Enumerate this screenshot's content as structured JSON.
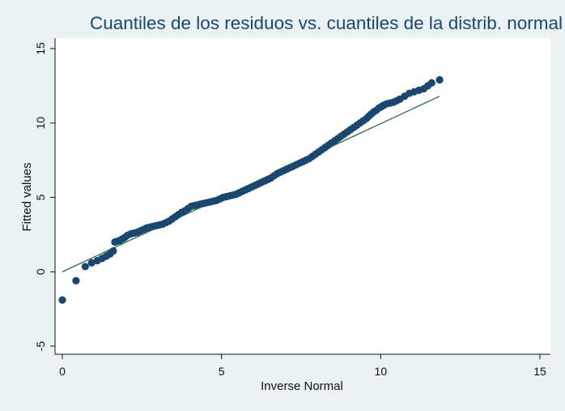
{
  "chart_data": {
    "type": "scatter",
    "title": "Cuantiles de los residuos vs. cuantiles de la distrib. normal",
    "xlabel": "Inverse Normal",
    "ylabel": "Fitted values",
    "xlim": [
      0,
      15
    ],
    "ylim": [
      -5,
      15
    ],
    "xticks": [
      "0",
      "5",
      "10",
      "15"
    ],
    "yticks": [
      "-5",
      "0",
      "5",
      "10",
      "15"
    ],
    "grid": false,
    "legend": "none",
    "colors": {
      "background": "#eaf2f3",
      "plot_area": "#ffffff",
      "points": "#1a476f",
      "reference_line": "#2d6a4f",
      "title": "#1a476f"
    },
    "series": [
      {
        "type": "scatter",
        "x": [
          0.0,
          0.43,
          0.72,
          0.92,
          1.1,
          1.25,
          1.38,
          1.5,
          1.6,
          1.65,
          1.72,
          1.8,
          1.88,
          1.96,
          2.05,
          2.15,
          2.25,
          2.35,
          2.45,
          2.55,
          2.65,
          2.75,
          2.85,
          2.95,
          3.05,
          3.15,
          3.25,
          3.35,
          3.45,
          3.55,
          3.65,
          3.75,
          3.85,
          3.95,
          4.05,
          4.15,
          4.25,
          4.35,
          4.45,
          4.55,
          4.65,
          4.75,
          4.85,
          4.95,
          5.05,
          5.15,
          5.25,
          5.35,
          5.45,
          5.55,
          5.65,
          5.75,
          5.85,
          5.95,
          6.05,
          6.15,
          6.25,
          6.35,
          6.45,
          6.55,
          6.65,
          6.75,
          6.85,
          6.95,
          7.05,
          7.15,
          7.25,
          7.35,
          7.45,
          7.55,
          7.65,
          7.75,
          7.85,
          7.95,
          8.05,
          8.15,
          8.25,
          8.35,
          8.45,
          8.55,
          8.65,
          8.75,
          8.85,
          8.95,
          9.05,
          9.15,
          9.25,
          9.35,
          9.45,
          9.55,
          9.62,
          9.7,
          9.78,
          9.86,
          9.94,
          10.02,
          10.1,
          10.2,
          10.3,
          10.4,
          10.5,
          10.6,
          10.75,
          10.9,
          11.05,
          11.2,
          11.35,
          11.48,
          11.6,
          11.85
        ],
        "y": [
          -1.9,
          -0.6,
          0.35,
          0.6,
          0.75,
          0.9,
          1.05,
          1.2,
          1.4,
          2.0,
          2.05,
          2.1,
          2.2,
          2.3,
          2.45,
          2.55,
          2.6,
          2.65,
          2.75,
          2.85,
          2.95,
          3.0,
          3.05,
          3.1,
          3.15,
          3.2,
          3.3,
          3.4,
          3.55,
          3.7,
          3.85,
          4.0,
          4.1,
          4.25,
          4.4,
          4.45,
          4.5,
          4.55,
          4.6,
          4.65,
          4.7,
          4.75,
          4.8,
          4.9,
          5.0,
          5.05,
          5.1,
          5.15,
          5.2,
          5.3,
          5.4,
          5.5,
          5.6,
          5.7,
          5.8,
          5.9,
          6.0,
          6.1,
          6.2,
          6.3,
          6.45,
          6.6,
          6.7,
          6.8,
          6.9,
          7.0,
          7.1,
          7.2,
          7.3,
          7.4,
          7.5,
          7.6,
          7.75,
          7.9,
          8.05,
          8.2,
          8.35,
          8.5,
          8.65,
          8.8,
          8.95,
          9.1,
          9.25,
          9.4,
          9.55,
          9.7,
          9.85,
          10.0,
          10.15,
          10.3,
          10.45,
          10.6,
          10.75,
          10.85,
          11.0,
          11.1,
          11.2,
          11.3,
          11.35,
          11.4,
          11.5,
          11.6,
          11.8,
          12.0,
          12.1,
          12.2,
          12.3,
          12.5,
          12.7,
          12.9
        ]
      },
      {
        "type": "line",
        "x": [
          0.0,
          11.85
        ],
        "y": [
          0.0,
          11.8
        ]
      }
    ]
  }
}
